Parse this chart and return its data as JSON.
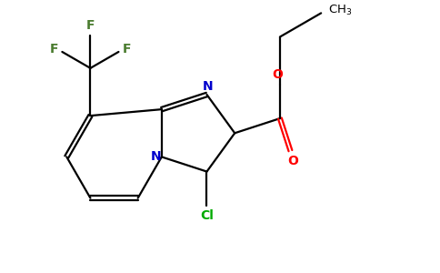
{
  "bg_color": "#ffffff",
  "bond_color": "#000000",
  "N_color": "#0000cc",
  "O_color": "#ff0000",
  "F_color": "#4a7c2f",
  "Cl_color": "#00aa00",
  "figsize": [
    4.84,
    3.0
  ],
  "dpi": 100,
  "bond_lw": 1.6,
  "xlim": [
    0,
    9.68
  ],
  "ylim": [
    0,
    6.0
  ]
}
